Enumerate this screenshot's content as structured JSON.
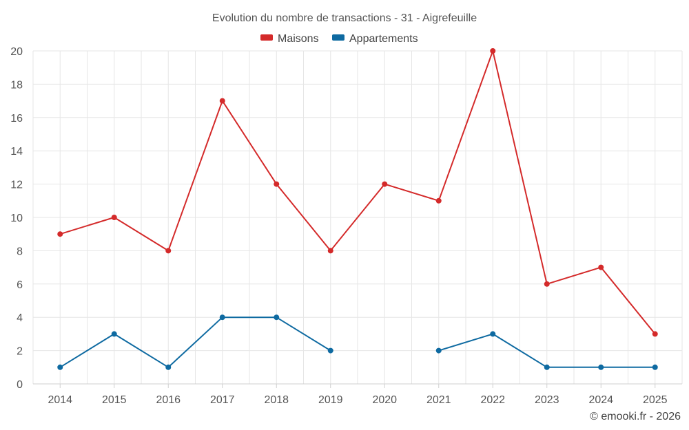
{
  "chart_data": {
    "type": "line",
    "title": "Evolution du nombre de transactions - 31 - Aigrefeuille",
    "xlabel": "",
    "ylabel": "",
    "categories": [
      "2014",
      "2015",
      "2016",
      "2017",
      "2018",
      "2019",
      "2020",
      "2021",
      "2022",
      "2023",
      "2024",
      "2025"
    ],
    "ylim": [
      0,
      20
    ],
    "yticks": [
      0,
      2,
      4,
      6,
      8,
      10,
      12,
      14,
      16,
      18,
      20
    ],
    "grid": true,
    "legend_position": "top-center",
    "series": [
      {
        "name": "Maisons",
        "color": "#d42a2a",
        "values": [
          9,
          10,
          8,
          17,
          12,
          8,
          12,
          11,
          20,
          6,
          7,
          3
        ]
      },
      {
        "name": "Appartements",
        "color": "#0e6aa1",
        "values": [
          1,
          3,
          1,
          4,
          4,
          2,
          null,
          2,
          3,
          1,
          1,
          1
        ]
      }
    ]
  },
  "credit": "© emooki.fr - 2026"
}
